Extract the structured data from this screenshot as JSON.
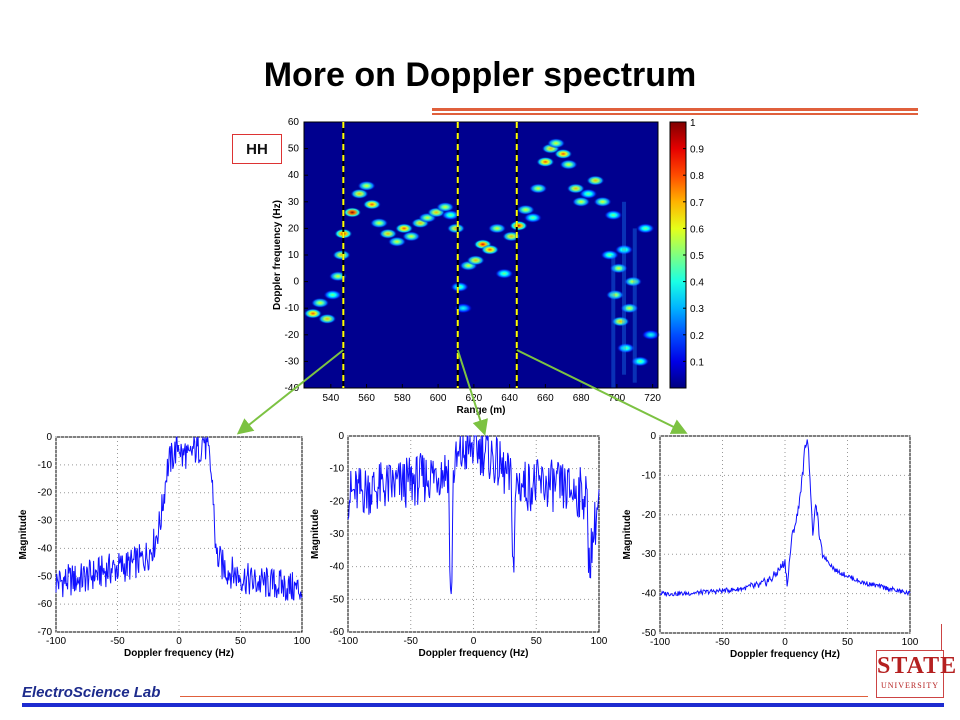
{
  "page": {
    "title": "More on Doppler spectrum",
    "footer_text": "ElectroScience Lab",
    "logo_main": "STATE",
    "logo_sub": "UNIVERSITY",
    "colors": {
      "accent_rule": "#e0603c",
      "footer_blue": "#1d2bd0",
      "trace": "#1010ff",
      "arrow": "#7cc242",
      "cut_line": "#ffff00"
    }
  },
  "chart_data": [
    {
      "type": "heatmap",
      "label_box": "HH",
      "xlabel": "Range (m)",
      "ylabel": "Doppler frequency (Hz)",
      "xlim": [
        525,
        723
      ],
      "ylim": [
        -40,
        60
      ],
      "xticks": [
        540,
        560,
        580,
        600,
        620,
        640,
        660,
        680,
        700,
        720
      ],
      "yticks": [
        -40,
        -30,
        -20,
        -10,
        0,
        10,
        20,
        30,
        40,
        50,
        60
      ],
      "colorbar": {
        "colormap": "jet",
        "range": [
          0,
          1
        ],
        "ticks": [
          0.1,
          0.2,
          0.3,
          0.4,
          0.5,
          0.6,
          0.7,
          0.8,
          0.9,
          1
        ]
      },
      "cut_ranges_m": [
        547,
        611,
        644
      ],
      "blobs": [
        {
          "x": 530,
          "y": -12,
          "v": 0.8
        },
        {
          "x": 534,
          "y": -8,
          "v": 0.6
        },
        {
          "x": 538,
          "y": -14,
          "v": 0.7
        },
        {
          "x": 541,
          "y": -5,
          "v": 0.5
        },
        {
          "x": 544,
          "y": 2,
          "v": 0.6
        },
        {
          "x": 546,
          "y": 10,
          "v": 0.7
        },
        {
          "x": 547,
          "y": 18,
          "v": 0.9
        },
        {
          "x": 552,
          "y": 26,
          "v": 1.0
        },
        {
          "x": 556,
          "y": 33,
          "v": 0.7
        },
        {
          "x": 560,
          "y": 36,
          "v": 0.6
        },
        {
          "x": 563,
          "y": 29,
          "v": 0.8
        },
        {
          "x": 567,
          "y": 22,
          "v": 0.6
        },
        {
          "x": 572,
          "y": 18,
          "v": 0.7
        },
        {
          "x": 577,
          "y": 15,
          "v": 0.6
        },
        {
          "x": 581,
          "y": 20,
          "v": 0.8
        },
        {
          "x": 585,
          "y": 17,
          "v": 0.6
        },
        {
          "x": 590,
          "y": 22,
          "v": 0.7
        },
        {
          "x": 594,
          "y": 24,
          "v": 0.6
        },
        {
          "x": 599,
          "y": 26,
          "v": 0.7
        },
        {
          "x": 604,
          "y": 28,
          "v": 0.6
        },
        {
          "x": 607,
          "y": 25,
          "v": 0.5
        },
        {
          "x": 610,
          "y": 20,
          "v": 0.7
        },
        {
          "x": 612,
          "y": -2,
          "v": 0.5
        },
        {
          "x": 614,
          "y": -10,
          "v": 0.4
        },
        {
          "x": 617,
          "y": 6,
          "v": 0.6
        },
        {
          "x": 621,
          "y": 8,
          "v": 0.7
        },
        {
          "x": 625,
          "y": 14,
          "v": 0.9
        },
        {
          "x": 629,
          "y": 12,
          "v": 0.8
        },
        {
          "x": 633,
          "y": 20,
          "v": 0.6
        },
        {
          "x": 637,
          "y": 3,
          "v": 0.5
        },
        {
          "x": 641,
          "y": 17,
          "v": 0.7
        },
        {
          "x": 645,
          "y": 21,
          "v": 0.9
        },
        {
          "x": 649,
          "y": 27,
          "v": 0.6
        },
        {
          "x": 653,
          "y": 24,
          "v": 0.5
        },
        {
          "x": 656,
          "y": 35,
          "v": 0.6
        },
        {
          "x": 660,
          "y": 45,
          "v": 0.8
        },
        {
          "x": 663,
          "y": 50,
          "v": 0.7
        },
        {
          "x": 666,
          "y": 52,
          "v": 0.6
        },
        {
          "x": 670,
          "y": 48,
          "v": 0.8
        },
        {
          "x": 673,
          "y": 44,
          "v": 0.6
        },
        {
          "x": 677,
          "y": 35,
          "v": 0.7
        },
        {
          "x": 680,
          "y": 30,
          "v": 0.6
        },
        {
          "x": 684,
          "y": 33,
          "v": 0.5
        },
        {
          "x": 688,
          "y": 38,
          "v": 0.7
        },
        {
          "x": 692,
          "y": 30,
          "v": 0.6
        },
        {
          "x": 696,
          "y": 10,
          "v": 0.5
        },
        {
          "x": 699,
          "y": -5,
          "v": 0.6
        },
        {
          "x": 702,
          "y": -15,
          "v": 0.7
        },
        {
          "x": 705,
          "y": -25,
          "v": 0.5
        },
        {
          "x": 709,
          "y": 0,
          "v": 0.6
        },
        {
          "x": 713,
          "y": -30,
          "v": 0.5
        },
        {
          "x": 716,
          "y": 20,
          "v": 0.5
        },
        {
          "x": 719,
          "y": -20,
          "v": 0.4
        },
        {
          "x": 701,
          "y": 5,
          "v": 0.6
        },
        {
          "x": 704,
          "y": 12,
          "v": 0.5
        },
        {
          "x": 707,
          "y": -10,
          "v": 0.6
        },
        {
          "x": 698,
          "y": 25,
          "v": 0.5
        }
      ]
    },
    {
      "type": "line",
      "xlabel": "Doppler frequency (Hz)",
      "ylabel": "Magnitude",
      "xlim": [
        -100,
        100
      ],
      "ylim": [
        -70,
        0
      ],
      "xticks": [
        -100,
        -50,
        0,
        50,
        100
      ],
      "yticks": [
        0,
        -10,
        -20,
        -30,
        -40,
        -50,
        -60,
        -70
      ],
      "grid": true,
      "series": [
        {
          "x": [
            -100,
            -80,
            -60,
            -40,
            -30,
            -25,
            -20,
            -15,
            -12,
            -10,
            -8,
            -5,
            -2,
            0,
            3,
            5,
            8,
            10,
            12,
            15,
            18,
            20,
            22,
            25,
            28,
            30,
            35,
            40,
            60,
            80,
            100
          ],
          "values": [
            -52,
            -51,
            -48,
            -46,
            -44,
            -42,
            -38,
            -30,
            -20,
            -12,
            -9,
            -7,
            -4,
            -2,
            -8,
            -5,
            -9,
            -6,
            -4,
            -5,
            -3,
            0,
            -4,
            -8,
            -22,
            -42,
            -46,
            -48,
            -52,
            -53,
            -55
          ]
        }
      ]
    },
    {
      "type": "line",
      "xlabel": "Doppler frequency (Hz)",
      "ylabel": "Magnitude",
      "xlim": [
        -100,
        100
      ],
      "ylim": [
        -60,
        0
      ],
      "xticks": [
        -100,
        -50,
        0,
        50,
        100
      ],
      "yticks": [
        0,
        -10,
        -20,
        -30,
        -40,
        -50,
        -60
      ],
      "grid": true,
      "series": [
        {
          "x": [
            -100,
            -80,
            -60,
            -40,
            -20,
            -18,
            -16,
            -10,
            0,
            10,
            20,
            30,
            32,
            34,
            40,
            60,
            80,
            90,
            92,
            100
          ],
          "values": [
            -18,
            -16,
            -15,
            -13,
            -10,
            -58,
            -10,
            -6,
            -3,
            -5,
            -9,
            -14,
            -43,
            -14,
            -15,
            -15,
            -17,
            -18,
            -39,
            -19
          ]
        }
      ]
    },
    {
      "type": "line",
      "xlabel": "Doppler frequency (Hz)",
      "ylabel": "Magnitude",
      "xlim": [
        -100,
        100
      ],
      "ylim": [
        -50,
        0
      ],
      "xticks": [
        -100,
        -50,
        0,
        50,
        100
      ],
      "yticks": [
        0,
        -10,
        -20,
        -30,
        -40,
        -50
      ],
      "grid": true,
      "series": [
        {
          "x": [
            -100,
            -80,
            -60,
            -40,
            -20,
            -10,
            0,
            2,
            4,
            6,
            10,
            14,
            16,
            18,
            20,
            22,
            25,
            28,
            30,
            40,
            60,
            80,
            100
          ],
          "values": [
            -40,
            -40,
            -39.5,
            -39,
            -38,
            -36,
            -32,
            -38,
            -30,
            -25,
            -20,
            -10,
            -3,
            0,
            -10,
            -25,
            -17,
            -27,
            -30,
            -34,
            -37,
            -38.5,
            -40
          ]
        }
      ]
    }
  ]
}
